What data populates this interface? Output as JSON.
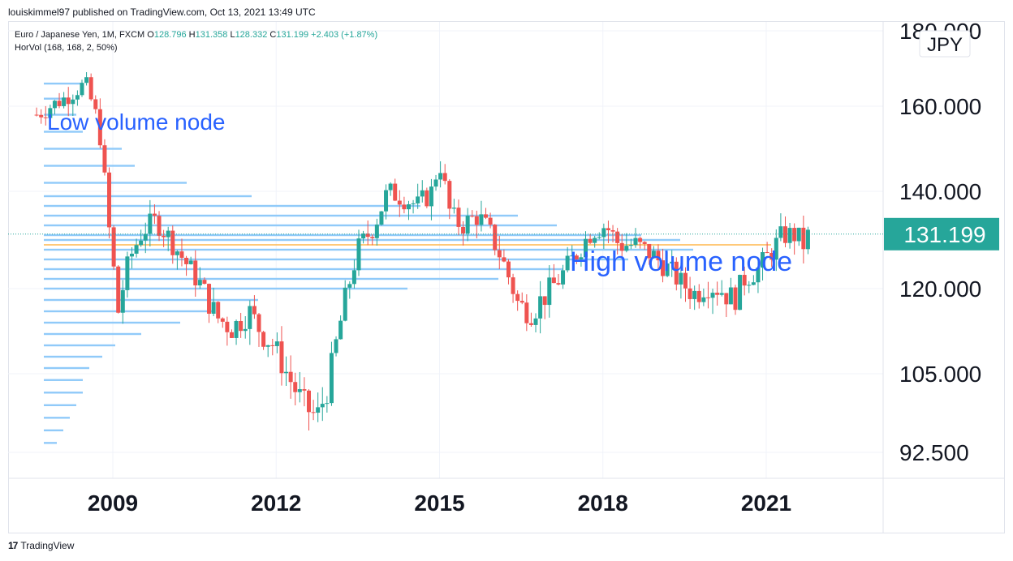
{
  "publisher_line": "louiskimmel97 published on TradingView.com, Oct 13, 2021 13:49 UTC",
  "legend": {
    "symbol": "Euro / Japanese Yen, 1M, FXCM",
    "open_label": "O",
    "open": "128.796",
    "high_label": "H",
    "high": "131.358",
    "low_label": "L",
    "low": "128.332",
    "close_label": "C",
    "close": "131.199",
    "change": "+2.403 (+1.87%)",
    "indicator": "HorVol (168, 168, 2, 50%)"
  },
  "footer": {
    "brand": "TradingView",
    "logo": "tradingview-logo-icon"
  },
  "chart_data": {
    "type": "candlestick",
    "currency_label": "JPY",
    "last_price": "131.199",
    "yaxis_ticks": [
      "180.000",
      "160.000",
      "140.000",
      "131.199",
      "120.000",
      "105.000",
      "92.500"
    ],
    "xaxis_ticks": [
      "2009",
      "2012",
      "2015",
      "2018",
      "2021"
    ],
    "annotations": [
      "Low volume node",
      "High volume node"
    ],
    "colors": {
      "up": "#26a69a",
      "down": "#ef5350",
      "volume_profile": "#90caf9",
      "poc": "#ffb74d",
      "price_badge": "#26a69a",
      "annotation": "#2962ff"
    },
    "yearly_path": [
      [
        2007.6,
        158
      ],
      [
        2008.1,
        162
      ],
      [
        2008.5,
        166
      ],
      [
        2008.75,
        155
      ],
      [
        2008.95,
        130
      ],
      [
        2009.1,
        116
      ],
      [
        2009.3,
        126
      ],
      [
        2009.55,
        132
      ],
      [
        2009.8,
        134
      ],
      [
        2010.0,
        131
      ],
      [
        2010.3,
        126
      ],
      [
        2010.6,
        121
      ],
      [
        2010.9,
        115
      ],
      [
        2011.2,
        113
      ],
      [
        2011.5,
        116
      ],
      [
        2011.75,
        112
      ],
      [
        2011.95,
        110
      ],
      [
        2012.2,
        105
      ],
      [
        2012.5,
        100
      ],
      [
        2012.75,
        98
      ],
      [
        2012.95,
        103
      ],
      [
        2013.2,
        115
      ],
      [
        2013.5,
        128
      ],
      [
        2013.8,
        133
      ],
      [
        2014.05,
        140
      ],
      [
        2014.3,
        139
      ],
      [
        2014.6,
        137
      ],
      [
        2014.85,
        140
      ],
      [
        2015.0,
        147
      ],
      [
        2015.2,
        135
      ],
      [
        2015.4,
        133
      ],
      [
        2015.7,
        135
      ],
      [
        2015.9,
        132
      ],
      [
        2016.15,
        126
      ],
      [
        2016.45,
        117
      ],
      [
        2016.7,
        116
      ],
      [
        2016.95,
        119
      ],
      [
        2017.2,
        122
      ],
      [
        2017.5,
        127
      ],
      [
        2017.8,
        132
      ],
      [
        2018.05,
        133
      ],
      [
        2018.3,
        129
      ],
      [
        2018.6,
        129
      ],
      [
        2018.9,
        127
      ],
      [
        2019.2,
        124
      ],
      [
        2019.45,
        121
      ],
      [
        2019.7,
        119
      ],
      [
        2019.9,
        121
      ],
      [
        2020.15,
        120
      ],
      [
        2020.4,
        118
      ],
      [
        2020.6,
        122
      ],
      [
        2020.85,
        124
      ],
      [
        2021.05,
        127
      ],
      [
        2021.3,
        131
      ],
      [
        2021.55,
        131
      ],
      [
        2021.7,
        128.8
      ],
      [
        2021.78,
        131.2
      ]
    ],
    "volume_profile": [
      {
        "price": 166,
        "length": 0.06
      },
      {
        "price": 162,
        "length": 0.04
      },
      {
        "price": 158,
        "length": 0.05
      },
      {
        "price": 154,
        "length": 0.06
      },
      {
        "price": 150,
        "length": 0.12
      },
      {
        "price": 146,
        "length": 0.14
      },
      {
        "price": 142,
        "length": 0.22
      },
      {
        "price": 139,
        "length": 0.32
      },
      {
        "price": 137,
        "length": 0.58
      },
      {
        "price": 135,
        "length": 0.73
      },
      {
        "price": 133,
        "length": 0.79
      },
      {
        "price": 131,
        "length": 0.92
      },
      {
        "price": 130,
        "length": 0.98
      },
      {
        "price": 128,
        "length": 1.0
      },
      {
        "price": 126,
        "length": 0.9
      },
      {
        "price": 124,
        "length": 0.8
      },
      {
        "price": 122,
        "length": 0.7
      },
      {
        "price": 120,
        "length": 0.56
      },
      {
        "price": 118,
        "length": 0.33
      },
      {
        "price": 116,
        "length": 0.26
      },
      {
        "price": 114,
        "length": 0.21
      },
      {
        "price": 112,
        "length": 0.15
      },
      {
        "price": 110,
        "length": 0.11
      },
      {
        "price": 108,
        "length": 0.09
      },
      {
        "price": 106,
        "length": 0.07
      },
      {
        "price": 104,
        "length": 0.06
      },
      {
        "price": 102,
        "length": 0.06
      },
      {
        "price": 100,
        "length": 0.05
      },
      {
        "price": 98,
        "length": 0.04
      },
      {
        "price": 96,
        "length": 0.03
      },
      {
        "price": 94,
        "length": 0.02
      }
    ],
    "poc_price": 129
  }
}
